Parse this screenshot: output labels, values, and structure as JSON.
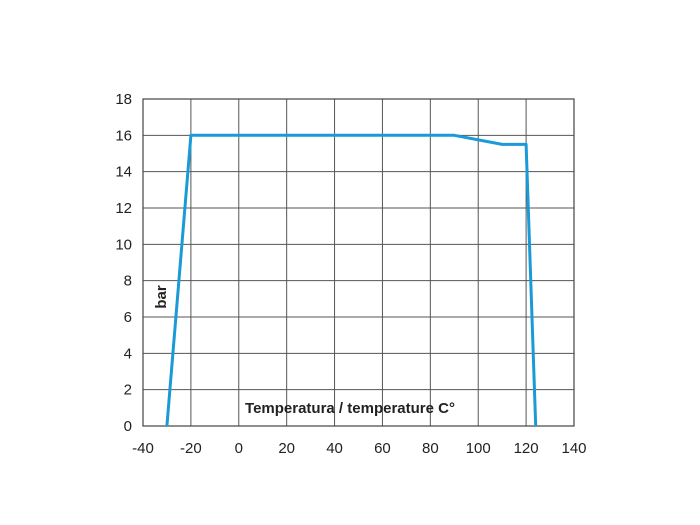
{
  "chart_data": {
    "type": "line",
    "title": "",
    "xlabel": "Temperatura / temperature C°",
    "ylabel": "bar",
    "xlim": [
      -40,
      140
    ],
    "ylim": [
      0,
      18
    ],
    "x_ticks": [
      -40,
      -20,
      0,
      20,
      40,
      60,
      80,
      100,
      120,
      140
    ],
    "y_ticks": [
      0,
      2,
      4,
      6,
      8,
      10,
      12,
      14,
      16,
      18
    ],
    "grid": true,
    "legend": "none",
    "series": [
      {
        "color": "#1a9ad6",
        "points": [
          {
            "x": -30,
            "y": 0
          },
          {
            "x": -20,
            "y": 16
          },
          {
            "x": 90,
            "y": 16
          },
          {
            "x": 110,
            "y": 15.5
          },
          {
            "x": 120,
            "y": 15.5
          },
          {
            "x": 124,
            "y": 0
          }
        ]
      }
    ]
  }
}
